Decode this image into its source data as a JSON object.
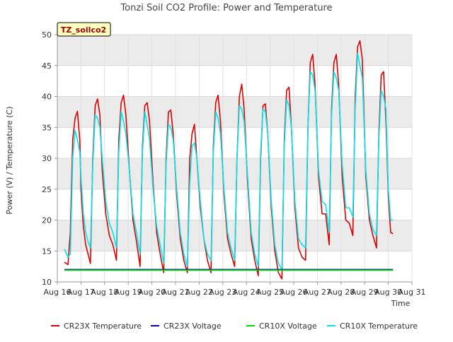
{
  "chart_data": {
    "type": "line",
    "title": "Tonzi Soil CO2 Profile: Power and Temperature",
    "xlabel": "Time",
    "ylabel": "Power (V) / Temperature (C)",
    "ylim": [
      10,
      50
    ],
    "xlim": [
      16,
      31
    ],
    "x_ticks": [
      {
        "value": 16,
        "label": "Aug 16"
      },
      {
        "value": 17,
        "label": "Aug 17"
      },
      {
        "value": 18,
        "label": "Aug 18"
      },
      {
        "value": 19,
        "label": "Aug 19"
      },
      {
        "value": 20,
        "label": "Aug 20"
      },
      {
        "value": 21,
        "label": "Aug 21"
      },
      {
        "value": 22,
        "label": "Aug 22"
      },
      {
        "value": 23,
        "label": "Aug 23"
      },
      {
        "value": 24,
        "label": "Aug 24"
      },
      {
        "value": 25,
        "label": "Aug 25"
      },
      {
        "value": 26,
        "label": "Aug 26"
      },
      {
        "value": 27,
        "label": "Aug 27"
      },
      {
        "value": 28,
        "label": "Aug 28"
      },
      {
        "value": 29,
        "label": "Aug 29"
      },
      {
        "value": 30,
        "label": "Aug 30"
      },
      {
        "value": 31,
        "label": "Aug 31"
      }
    ],
    "y_ticks": [
      10,
      15,
      20,
      25,
      30,
      35,
      40,
      45,
      50
    ],
    "grid": true,
    "legend_position": "bottom",
    "site_label": "TZ_soilco2",
    "series": [
      {
        "name": "CR23X Temperature",
        "color": "#dd0000",
        "x": [
          16.3,
          16.45,
          16.55,
          16.65,
          16.75,
          16.85,
          16.95,
          17.0,
          17.1,
          17.2,
          17.3,
          17.4,
          17.5,
          17.6,
          17.7,
          17.8,
          17.9,
          18.05,
          18.2,
          18.35,
          18.5,
          18.6,
          18.7,
          18.8,
          18.9,
          19.05,
          19.2,
          19.35,
          19.5,
          19.6,
          19.7,
          19.8,
          19.9,
          20.05,
          20.2,
          20.35,
          20.5,
          20.6,
          20.7,
          20.8,
          20.9,
          21.05,
          21.2,
          21.35,
          21.5,
          21.6,
          21.7,
          21.8,
          21.9,
          22.05,
          22.2,
          22.35,
          22.5,
          22.6,
          22.7,
          22.8,
          22.9,
          23.05,
          23.2,
          23.35,
          23.5,
          23.6,
          23.7,
          23.8,
          23.9,
          24.05,
          24.2,
          24.35,
          24.5,
          24.6,
          24.7,
          24.8,
          24.9,
          25.05,
          25.2,
          25.35,
          25.5,
          25.6,
          25.7,
          25.8,
          25.9,
          26.05,
          26.2,
          26.35,
          26.5,
          26.6,
          26.7,
          26.8,
          26.9,
          27.05,
          27.2,
          27.35,
          27.5,
          27.6,
          27.7,
          27.8,
          27.9,
          28.05,
          28.2,
          28.35,
          28.5,
          28.6,
          28.7,
          28.8,
          28.9,
          29.05,
          29.2,
          29.35,
          29.5,
          29.6,
          29.7,
          29.8,
          29.9,
          30.0,
          30.1,
          30.2
        ],
        "y": [
          13.2,
          12.8,
          18.0,
          33.0,
          36.5,
          37.6,
          33.0,
          25.0,
          19.0,
          16.0,
          14.5,
          13.0,
          30.0,
          38.5,
          39.6,
          37.0,
          28.0,
          21.0,
          17.5,
          16.0,
          13.5,
          33.0,
          39.0,
          40.2,
          37.0,
          28.0,
          20.0,
          16.5,
          12.5,
          32.0,
          38.5,
          39.0,
          36.0,
          26.0,
          18.0,
          14.5,
          11.5,
          30.0,
          37.5,
          37.8,
          34.0,
          24.0,
          17.0,
          13.5,
          11.5,
          30.0,
          34.0,
          35.5,
          30.0,
          22.0,
          17.0,
          13.5,
          11.5,
          32.0,
          39.0,
          40.2,
          36.0,
          24.0,
          17.0,
          14.5,
          12.5,
          30.0,
          40.0,
          42.0,
          38.0,
          26.0,
          17.0,
          13.5,
          11.0,
          30.0,
          38.5,
          38.8,
          34.0,
          22.0,
          15.0,
          11.5,
          10.5,
          33.0,
          41.0,
          41.5,
          35.0,
          22.0,
          15.5,
          14.0,
          13.5,
          35.0,
          45.5,
          46.8,
          42.0,
          27.0,
          21.0,
          21.0,
          16.0,
          38.0,
          45.5,
          46.8,
          42.0,
          27.0,
          20.0,
          19.5,
          17.5,
          40.0,
          48.0,
          49.0,
          46.0,
          27.0,
          20.0,
          17.5,
          15.5,
          34.0,
          43.5,
          44.0,
          36.0,
          24.0,
          18.0,
          17.8
        ]
      },
      {
        "name": "CR23X Voltage",
        "color": "#0000aa",
        "x": [
          16.3,
          30.2
        ],
        "y": [
          12.0,
          12.0
        ]
      },
      {
        "name": "CR10X Voltage",
        "color": "#00dd00",
        "x": [
          16.3,
          30.2
        ],
        "y": [
          11.9,
          11.9
        ]
      },
      {
        "name": "CR10X Temperature",
        "color": "#00e5ee",
        "x": [
          16.3,
          16.45,
          16.55,
          16.65,
          16.75,
          16.85,
          16.95,
          17.0,
          17.1,
          17.2,
          17.3,
          17.4,
          17.5,
          17.6,
          17.7,
          17.8,
          17.9,
          18.05,
          18.2,
          18.35,
          18.5,
          18.6,
          18.7,
          18.8,
          18.9,
          19.05,
          19.2,
          19.35,
          19.5,
          19.6,
          19.7,
          19.8,
          19.9,
          20.05,
          20.2,
          20.35,
          20.5,
          20.6,
          20.7,
          20.8,
          20.9,
          21.05,
          21.2,
          21.35,
          21.5,
          21.6,
          21.7,
          21.8,
          21.9,
          22.05,
          22.2,
          22.35,
          22.5,
          22.6,
          22.7,
          22.8,
          22.9,
          23.05,
          23.2,
          23.35,
          23.5,
          23.6,
          23.7,
          23.8,
          23.9,
          24.05,
          24.2,
          24.35,
          24.5,
          24.6,
          24.7,
          24.8,
          24.9,
          25.05,
          25.2,
          25.35,
          25.5,
          25.6,
          25.7,
          25.8,
          25.9,
          26.05,
          26.2,
          26.35,
          26.5,
          26.6,
          26.7,
          26.8,
          26.9,
          27.05,
          27.2,
          27.35,
          27.5,
          27.6,
          27.7,
          27.8,
          27.9,
          28.05,
          28.2,
          28.35,
          28.5,
          28.6,
          28.7,
          28.8,
          28.9,
          29.05,
          29.2,
          29.35,
          29.5,
          29.6,
          29.7,
          29.8,
          29.9,
          30.0,
          30.1,
          30.2
        ],
        "y": [
          15.3,
          14.0,
          14.5,
          30.0,
          34.5,
          33.0,
          31.0,
          27.0,
          21.0,
          18.0,
          16.5,
          15.5,
          29.0,
          37.0,
          36.5,
          35.0,
          30.0,
          23.0,
          19.5,
          18.0,
          15.5,
          31.0,
          37.5,
          36.0,
          34.0,
          28.0,
          21.0,
          18.0,
          14.5,
          31.0,
          37.5,
          35.5,
          33.0,
          25.0,
          19.0,
          16.0,
          13.0,
          29.0,
          35.5,
          35.0,
          33.0,
          25.0,
          18.0,
          14.5,
          12.5,
          26.0,
          32.0,
          32.5,
          30.0,
          23.0,
          17.0,
          14.5,
          13.5,
          31.0,
          37.5,
          36.5,
          34.0,
          25.0,
          18.0,
          15.5,
          13.5,
          30.0,
          38.5,
          38.0,
          36.0,
          27.0,
          18.0,
          14.5,
          12.5,
          31.0,
          38.0,
          37.5,
          34.0,
          23.0,
          16.0,
          13.0,
          12.0,
          32.0,
          39.5,
          38.5,
          35.0,
          23.0,
          17.0,
          16.0,
          15.5,
          35.0,
          44.0,
          43.5,
          41.0,
          28.0,
          23.0,
          22.5,
          18.0,
          37.0,
          44.0,
          43.0,
          41.0,
          29.0,
          22.0,
          22.0,
          20.5,
          38.0,
          47.0,
          45.0,
          43.0,
          28.0,
          21.0,
          18.5,
          17.5,
          33.0,
          41.0,
          40.0,
          38.0,
          25.0,
          20.0,
          20.0
        ]
      }
    ]
  }
}
